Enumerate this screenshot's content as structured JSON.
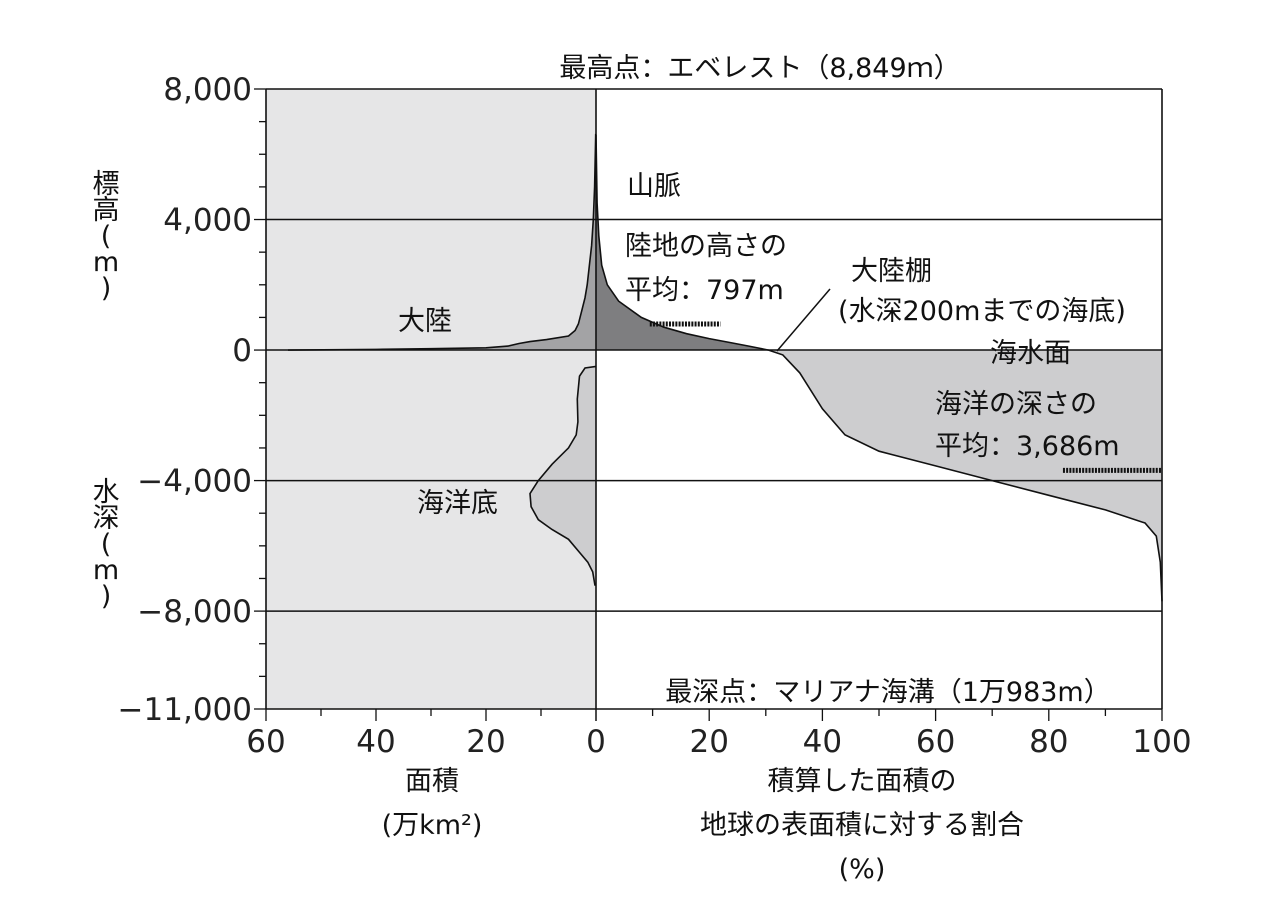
{
  "chart_data": [
    {
      "type": "area",
      "id": "land-ocean-area-by-elevation",
      "y_units": "m",
      "ylim": [
        -11000,
        8000
      ],
      "xlim": [
        60,
        0
      ],
      "x_direction": "reversed",
      "xlabel": [
        "面積",
        "(万km²)"
      ],
      "x_ticks": [
        60,
        40,
        20,
        0
      ],
      "y_ticks": [
        8000,
        4000,
        0,
        -4000,
        -8000,
        -11000
      ],
      "y_tick_labels": [
        "8,000",
        "4,000",
        "0",
        "−4,000",
        "−8,000",
        "−11,000"
      ],
      "ylabel_upper": [
        "標",
        "高",
        "(",
        "m",
        ")"
      ],
      "ylabel_lower": [
        "水",
        "深",
        "(",
        "m",
        ")"
      ],
      "background": "#e6e6e7",
      "series": [
        {
          "name": "大陸",
          "fill": "#a3a3a5",
          "points": [
            [
              56,
              0
            ],
            [
              40,
              20
            ],
            [
              30,
              40
            ],
            [
              20,
              70
            ],
            [
              16,
              120
            ],
            [
              14,
              200
            ],
            [
              12,
              260
            ],
            [
              9,
              320
            ],
            [
              5,
              430
            ],
            [
              3.8,
              600
            ],
            [
              3.2,
              800
            ],
            [
              2.6,
              1200
            ],
            [
              2.0,
              1600
            ],
            [
              1.6,
              2000
            ],
            [
              1.2,
              2600
            ],
            [
              0.8,
              3200
            ],
            [
              0.5,
              4000
            ],
            [
              0.25,
              5000
            ],
            [
              0.05,
              6600
            ],
            [
              0,
              6600
            ]
          ]
        },
        {
          "name": "海洋底",
          "fill": "#cdcdcf",
          "points": [
            [
              0,
              -500
            ],
            [
              2.0,
              -550
            ],
            [
              3.0,
              -800
            ],
            [
              3.4,
              -1500
            ],
            [
              3.3,
              -2200
            ],
            [
              3.6,
              -2600
            ],
            [
              5.0,
              -3000
            ],
            [
              8.0,
              -3500
            ],
            [
              10.5,
              -4000
            ],
            [
              12.0,
              -4400
            ],
            [
              11.8,
              -4800
            ],
            [
              10.5,
              -5200
            ],
            [
              8.0,
              -5500
            ],
            [
              5.0,
              -5800
            ],
            [
              3.0,
              -6200
            ],
            [
              1.5,
              -6500
            ],
            [
              0.6,
              -6800
            ],
            [
              0.2,
              -7200
            ],
            [
              0,
              -7200
            ]
          ]
        }
      ]
    },
    {
      "type": "line",
      "id": "hypsometric-curve",
      "y_units": "m",
      "ylim": [
        -11000,
        8000
      ],
      "xlim": [
        0,
        100
      ],
      "x_ticks": [
        0,
        20,
        40,
        60,
        80,
        100
      ],
      "xlabel": [
        "積算した面積の",
        "地球の表面積に対する割合",
        "(%)"
      ],
      "series": [
        {
          "name": "",
          "land_fill": "#7e7e80",
          "ocean_fill": "#cdcdcf",
          "points": [
            [
              0,
              6600
            ],
            [
              0.2,
              4500
            ],
            [
              0.5,
              3500
            ],
            [
              1.0,
              2600
            ],
            [
              2.0,
              2000
            ],
            [
              4.0,
              1500
            ],
            [
              8.0,
              1000
            ],
            [
              12.0,
              700
            ],
            [
              16.0,
              500
            ],
            [
              20.0,
              350
            ],
            [
              24.0,
              220
            ],
            [
              27.0,
              120
            ],
            [
              29.0,
              50
            ],
            [
              30.5,
              0
            ],
            [
              33.0,
              -150
            ],
            [
              36.0,
              -700
            ],
            [
              40.0,
              -1800
            ],
            [
              44.0,
              -2600
            ],
            [
              50.0,
              -3100
            ],
            [
              60.0,
              -3550
            ],
            [
              70.0,
              -4000
            ],
            [
              80.0,
              -4450
            ],
            [
              90.0,
              -4900
            ],
            [
              97.0,
              -5300
            ],
            [
              99.0,
              -5700
            ],
            [
              99.7,
              -6500
            ],
            [
              100,
              -7700
            ]
          ]
        }
      ]
    }
  ],
  "annotations": {
    "highest_point": "最高点：エベレスト（8,849ｍ）",
    "deepest_point": "最深点：マリアナ海溝（1万983m）",
    "mountains": "山脈",
    "land_avg_line1": "陸地の高さの",
    "land_avg_line2": "平均：797m",
    "continent": "大陸",
    "shelf_line1": "大陸棚",
    "shelf_line2": "(水深200mまでの海底)",
    "sea_level": "海水面",
    "ocean_avg_line1": "海洋の深さの",
    "ocean_avg_line2": "平均：3,686m",
    "ocean_floor": "海洋底"
  },
  "reference_values": {
    "land_mean_elevation": 797,
    "ocean_mean_depth": -3686,
    "shelf_point_percent": 30.5
  }
}
